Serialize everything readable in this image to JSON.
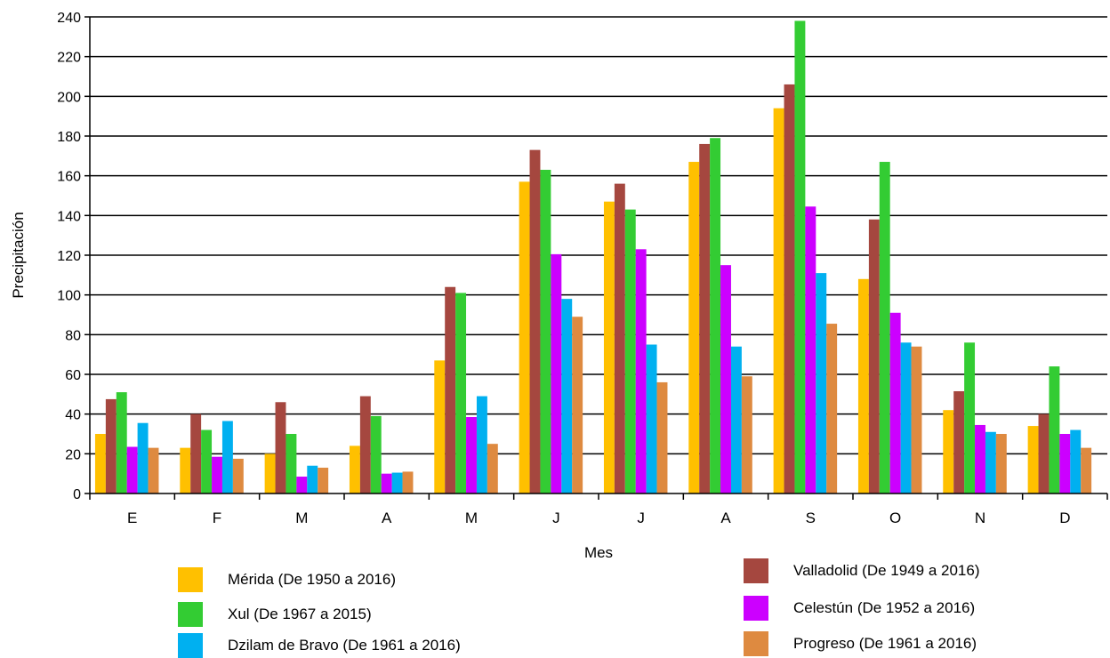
{
  "chart_data": {
    "type": "bar",
    "xlabel": "Mes",
    "ylabel": "Precipitación",
    "ylim": [
      0,
      240
    ],
    "ytick_step": 20,
    "grid": "horizontal",
    "categories": [
      "E",
      "F",
      "M",
      "A",
      "M",
      "J",
      "J",
      "A",
      "S",
      "O",
      "N",
      "D"
    ],
    "series": [
      {
        "name": "Mérida (De 1950 a 2016)",
        "color": "#FFC000",
        "values": [
          30,
          23,
          20,
          24,
          67,
          157,
          147,
          167,
          194,
          108,
          42,
          34
        ]
      },
      {
        "name": "Valladolid (De 1949 a 2016)",
        "color": "#A5473F",
        "values": [
          47.5,
          40,
          46,
          49,
          104,
          173,
          156,
          176,
          206,
          138,
          51.5,
          40
        ]
      },
      {
        "name": "Xul (De 1967 a 2015)",
        "color": "#33CC33",
        "values": [
          51,
          32,
          30,
          39,
          101,
          163,
          143,
          179,
          238,
          167,
          76,
          64
        ]
      },
      {
        "name": "Celestún (De 1952 a 2016)",
        "color": "#CC00FF",
        "values": [
          23.5,
          18.5,
          8.5,
          10,
          38.5,
          120.5,
          123,
          115,
          144.5,
          91,
          34.5,
          30
        ]
      },
      {
        "name": "Dzilam de Bravo (De 1961 a 2016)",
        "color": "#00B0F0",
        "values": [
          35.5,
          36.5,
          14,
          10.5,
          49,
          98,
          75,
          74,
          111,
          76,
          31,
          32
        ]
      },
      {
        "name": "Progreso (De 1961 a 2016)",
        "color": "#DE8A40",
        "values": [
          23,
          17.5,
          13,
          11,
          25,
          89,
          56,
          59,
          85.5,
          74,
          30,
          23
        ]
      }
    ]
  }
}
